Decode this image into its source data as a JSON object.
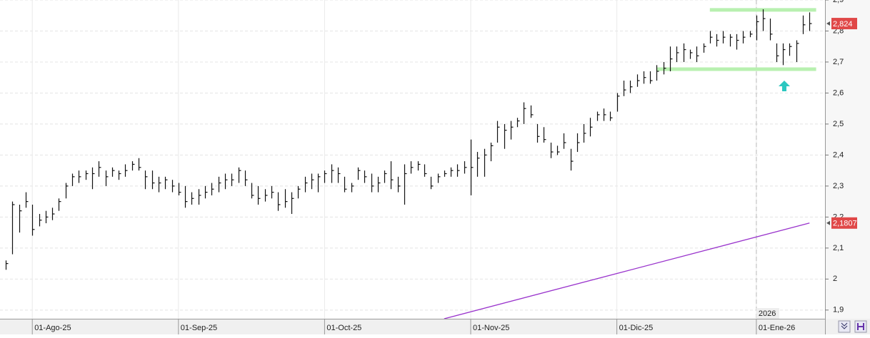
{
  "chart_data": {
    "type": "hlc",
    "categories": [
      null,
      null,
      null,
      null,
      "01-Ago-25",
      null,
      null,
      null,
      null,
      null,
      null,
      null,
      null,
      null,
      null,
      null,
      null,
      null,
      null,
      null,
      null,
      null,
      null,
      null,
      null,
      null,
      "01-Sep-25",
      null,
      null,
      null,
      null,
      null,
      null,
      null,
      null,
      null,
      null,
      null,
      null,
      null,
      null,
      null,
      null,
      null,
      null,
      null,
      null,
      null,
      "01-Oct-25",
      null,
      null,
      null,
      null,
      null,
      null,
      null,
      null,
      null,
      null,
      null,
      null,
      null,
      null,
      null,
      null,
      null,
      null,
      null,
      null,
      null,
      "01-Nov-25",
      null,
      null,
      null,
      null,
      null,
      null,
      null,
      null,
      null,
      null,
      null,
      null,
      null,
      null,
      null,
      null,
      null,
      null,
      null,
      null,
      null,
      "01-Dic-25",
      null,
      null,
      null,
      null,
      null,
      null,
      null,
      null,
      null,
      null,
      null,
      null,
      null,
      null,
      null,
      null,
      null,
      null,
      null,
      null,
      "01-Ene-26",
      null,
      null,
      null,
      null,
      null,
      null,
      null,
      null
    ],
    "high": [
      2.06,
      2.25,
      2.24,
      2.28,
      2.24,
      2.21,
      2.22,
      2.23,
      2.26,
      2.31,
      2.34,
      2.35,
      2.35,
      2.36,
      2.38,
      2.35,
      2.36,
      2.35,
      2.37,
      2.38,
      2.39,
      2.35,
      2.35,
      2.33,
      2.33,
      2.32,
      2.31,
      2.3,
      2.28,
      2.29,
      2.3,
      2.31,
      2.33,
      2.34,
      2.34,
      2.36,
      2.35,
      2.31,
      2.3,
      2.29,
      2.3,
      2.28,
      2.29,
      2.28,
      2.3,
      2.33,
      2.34,
      2.34,
      2.35,
      2.37,
      2.36,
      2.33,
      2.31,
      2.36,
      2.35,
      2.34,
      2.33,
      2.35,
      2.38,
      2.33,
      2.37,
      2.38,
      2.38,
      2.37,
      2.33,
      2.34,
      2.35,
      2.36,
      2.37,
      2.38,
      2.45,
      2.41,
      2.42,
      2.44,
      2.51,
      2.5,
      2.51,
      2.52,
      2.57,
      2.56,
      2.5,
      2.49,
      2.44,
      2.43,
      2.47,
      2.42,
      2.47,
      2.5,
      2.52,
      2.54,
      2.55,
      2.54,
      2.6,
      2.64,
      2.64,
      2.66,
      2.67,
      2.67,
      2.69,
      2.7,
      2.75,
      2.75,
      2.76,
      2.74,
      2.75,
      2.76,
      2.8,
      2.79,
      2.8,
      2.79,
      2.79,
      2.8,
      2.8,
      2.85,
      2.87,
      2.84,
      2.76,
      2.76,
      2.76,
      2.77,
      2.85,
      2.86
    ],
    "low": [
      2.03,
      2.08,
      2.15,
      2.23,
      2.14,
      2.17,
      2.18,
      2.19,
      2.22,
      2.26,
      2.3,
      2.31,
      2.32,
      2.29,
      2.33,
      2.3,
      2.33,
      2.32,
      2.33,
      2.35,
      2.35,
      2.29,
      2.29,
      2.28,
      2.29,
      2.28,
      2.27,
      2.23,
      2.24,
      2.24,
      2.26,
      2.27,
      2.28,
      2.29,
      2.3,
      2.31,
      2.3,
      2.26,
      2.24,
      2.25,
      2.26,
      2.22,
      2.23,
      2.21,
      2.26,
      2.28,
      2.29,
      2.28,
      2.31,
      2.31,
      2.31,
      2.28,
      2.28,
      2.32,
      2.31,
      2.28,
      2.28,
      2.31,
      2.29,
      2.28,
      2.24,
      2.34,
      2.35,
      2.33,
      2.29,
      2.31,
      2.33,
      2.33,
      2.33,
      2.34,
      2.27,
      2.33,
      2.33,
      2.38,
      2.44,
      2.42,
      2.45,
      2.49,
      2.5,
      2.52,
      2.44,
      2.44,
      2.39,
      2.4,
      2.42,
      2.35,
      2.41,
      2.44,
      2.46,
      2.51,
      2.51,
      2.51,
      2.54,
      2.59,
      2.6,
      2.62,
      2.63,
      2.63,
      2.64,
      2.66,
      2.67,
      2.7,
      2.7,
      2.71,
      2.7,
      2.73,
      2.76,
      2.75,
      2.76,
      2.75,
      2.74,
      2.76,
      2.78,
      2.77,
      2.8,
      2.77,
      2.7,
      2.69,
      2.72,
      2.7,
      2.79,
      2.8
    ],
    "close": [
      2.05,
      2.24,
      2.22,
      2.25,
      2.16,
      2.19,
      2.2,
      2.21,
      2.25,
      2.3,
      2.33,
      2.33,
      2.34,
      2.34,
      2.36,
      2.33,
      2.35,
      2.34,
      2.35,
      2.37,
      2.36,
      2.33,
      2.31,
      2.31,
      2.32,
      2.3,
      2.28,
      2.25,
      2.26,
      2.27,
      2.28,
      2.29,
      2.31,
      2.32,
      2.32,
      2.35,
      2.32,
      2.27,
      2.26,
      2.27,
      2.28,
      2.24,
      2.25,
      2.26,
      2.29,
      2.31,
      2.32,
      2.33,
      2.34,
      2.35,
      2.34,
      2.29,
      2.3,
      2.35,
      2.33,
      2.3,
      2.31,
      2.34,
      2.32,
      2.3,
      2.34,
      2.36,
      2.37,
      2.34,
      2.3,
      2.33,
      2.34,
      2.35,
      2.35,
      2.36,
      2.36,
      2.39,
      2.4,
      2.43,
      2.49,
      2.48,
      2.49,
      2.51,
      2.55,
      2.53,
      2.46,
      2.45,
      2.41,
      2.41,
      2.44,
      2.38,
      2.44,
      2.47,
      2.49,
      2.53,
      2.53,
      2.52,
      2.59,
      2.61,
      2.62,
      2.64,
      2.65,
      2.64,
      2.67,
      2.68,
      2.71,
      2.73,
      2.74,
      2.73,
      2.72,
      2.75,
      2.78,
      2.77,
      2.78,
      2.78,
      2.77,
      2.78,
      2.79,
      2.83,
      2.84,
      2.79,
      2.72,
      2.74,
      2.75,
      2.76,
      2.82,
      2.824
    ],
    "color": "#111111",
    "overlay_line": {
      "color": "#9933cc",
      "x": [
        66,
        121
      ],
      "values": [
        1.872,
        2.1807
      ]
    },
    "levels": [
      {
        "value": 2.868,
        "from": 106,
        "to": 122
      },
      {
        "value": 2.677,
        "from": 98,
        "to": 122
      }
    ],
    "level_color": "#b8f0b0",
    "last_labels": [
      {
        "value": 2.824,
        "label": "2,824"
      },
      {
        "value": 2.1807,
        "label": "2,1807"
      }
    ],
    "last_label_color": "#e04848",
    "year_label": "2026",
    "year_index": 113,
    "ylim": [
      1.872,
      2.9
    ],
    "yticks": [
      {
        "value": 1.9,
        "label": "1,9"
      },
      2,
      {
        "value": 2.1,
        "label": "2,1"
      },
      {
        "value": 2.2,
        "label": "2,2"
      },
      {
        "value": 2.3,
        "label": "2,3"
      },
      {
        "value": 2.4,
        "label": "2,4"
      },
      {
        "value": 2.5,
        "label": "2,5"
      },
      {
        "value": 2.6,
        "label": "2,6"
      },
      {
        "value": 2.7,
        "label": "2,7"
      },
      {
        "value": 2.8,
        "label": "2,8"
      },
      {
        "value": 2.9,
        "label": "2,9"
      }
    ],
    "grid": true
  }
}
